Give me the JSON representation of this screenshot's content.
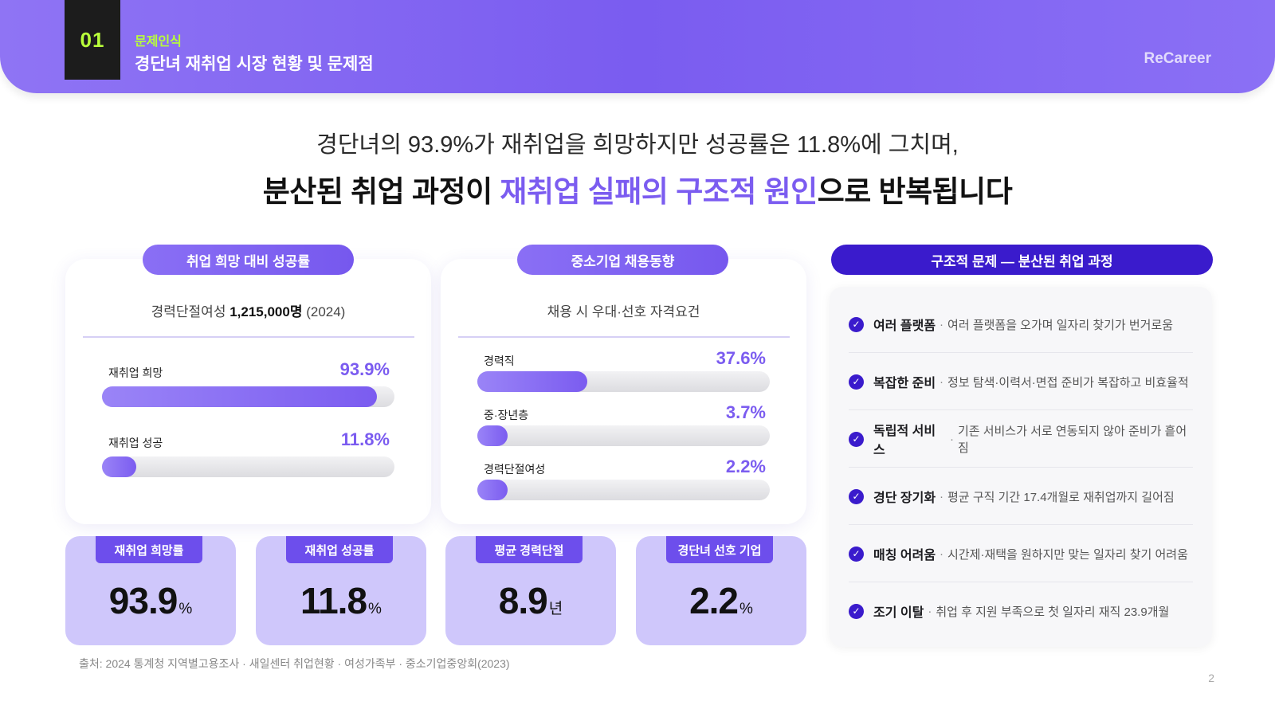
{
  "header": {
    "section_number": "01",
    "category": "문제인식",
    "title": "경단녀 재취업 시장 현황 및 문제점",
    "brand": "ReCareer"
  },
  "headline": {
    "line1": "경단녀의 93.9%가 재취업을 희망하지만 성공률은 11.8%에 그치며,",
    "line2_before": "분산된 취업 과정이 ",
    "line2_accent": "재취업 실패의 구조적 원인",
    "line2_after": "으로 반복됩니다"
  },
  "panel1": {
    "pill": "취업 희망 대비 성공률",
    "sub_prefix": "경력단절여성 ",
    "sub_bold": "1,215,000명",
    "sub_suffix": " (2024)",
    "bars": [
      {
        "label": "재취업 희망",
        "value_text": "93.9%",
        "percent": 93.9
      },
      {
        "label": "재취업 성공",
        "value_text": "11.8%",
        "percent": 11.8
      }
    ]
  },
  "panel2": {
    "pill": "중소기업 채용동향",
    "sub": "채용 시 우대·선호 자격요건",
    "bars": [
      {
        "label": "경력직",
        "value_text": "37.6%",
        "percent": 37.6
      },
      {
        "label": "중·장년층",
        "value_text": "3.7%",
        "percent": 3.7
      },
      {
        "label": "경력단절여성",
        "value_text": "2.2%",
        "percent": 2.2
      }
    ]
  },
  "stats": [
    {
      "tag": "재취업 희망률",
      "value": "93.9",
      "unit": "%"
    },
    {
      "tag": "재취업 성공률",
      "value": "11.8",
      "unit": "%"
    },
    {
      "tag": "평균 경력단절",
      "value": "8.9",
      "unit": "년"
    },
    {
      "tag": "경단녀 선호 기업",
      "value": "2.2",
      "unit": "%"
    }
  ],
  "problems": {
    "pill": "구조적 문제 — 분산된 취업 과정",
    "items": [
      {
        "title": "여러 플랫폼",
        "desc": "여러 플랫폼을 오가며 일자리 찾기가 번거로움"
      },
      {
        "title": "복잡한 준비",
        "desc": "정보 탐색·이력서·면접 준비가 복잡하고 비효율적"
      },
      {
        "title": "독립적 서비스",
        "desc": "기존 서비스가 서로 연동되지 않아 준비가 흩어짐"
      },
      {
        "title": "경단 장기화",
        "desc": "평균 구직 기간 17.4개월로 재취업까지 길어짐"
      },
      {
        "title": "매칭 어려움",
        "desc": "시간제·재택을 원하지만 맞는 일자리 찾기 어려움"
      },
      {
        "title": "조기 이탈",
        "desc": "취업 후 지원 부족으로 첫 일자리 재직 23.9개월"
      }
    ],
    "separator": "·",
    "check_glyph": "✓"
  },
  "footer": {
    "source": "출처: 2024 통계청 지역별고용조사 · 새일센터 취업현황 · 여성가족부 · 중소기업중앙회(2023)",
    "page": "2"
  },
  "colors": {
    "accent": "#7b5cf0",
    "dark_accent": "#3a1bcc",
    "lime": "#b8ff3a",
    "stat_bg": "#cfc7fb"
  }
}
